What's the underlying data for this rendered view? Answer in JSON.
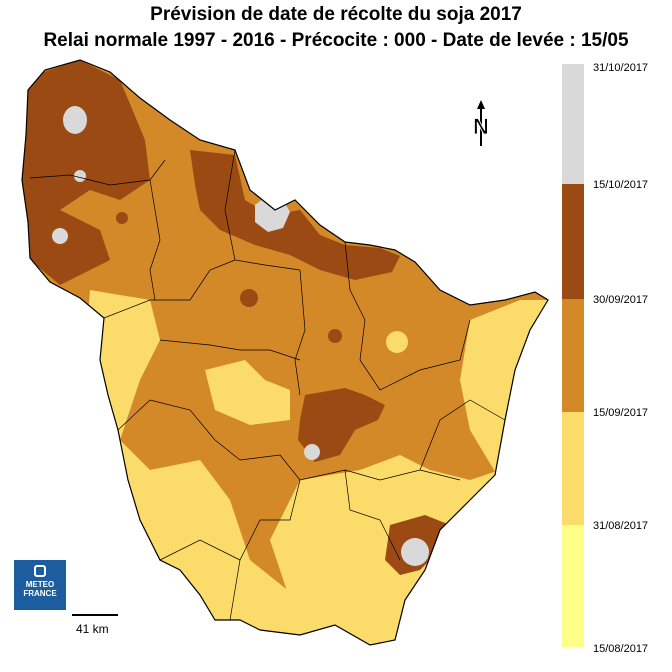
{
  "title_line1": "Prévision de date de récolte du soja 2017",
  "title_line2": "Relai normale  1997 - 2016 - Précocite : 000 - Date de levée :  15/05",
  "legend": [
    {
      "label": "31/10/2017",
      "color": "#d9d9d9"
    },
    {
      "label": "15/10/2017",
      "color": "#9a4a12"
    },
    {
      "label": "30/09/2017",
      "color": "#d38928"
    },
    {
      "label": "15/09/2017",
      "color": "#fbdc6a"
    },
    {
      "label": "31/08/2017",
      "color": "#ffff88"
    },
    {
      "label": "15/08/2017",
      "color": ""
    }
  ],
  "north_letter": "N",
  "logo_text": "METEO FRANCE",
  "scale_label": "41 km"
}
